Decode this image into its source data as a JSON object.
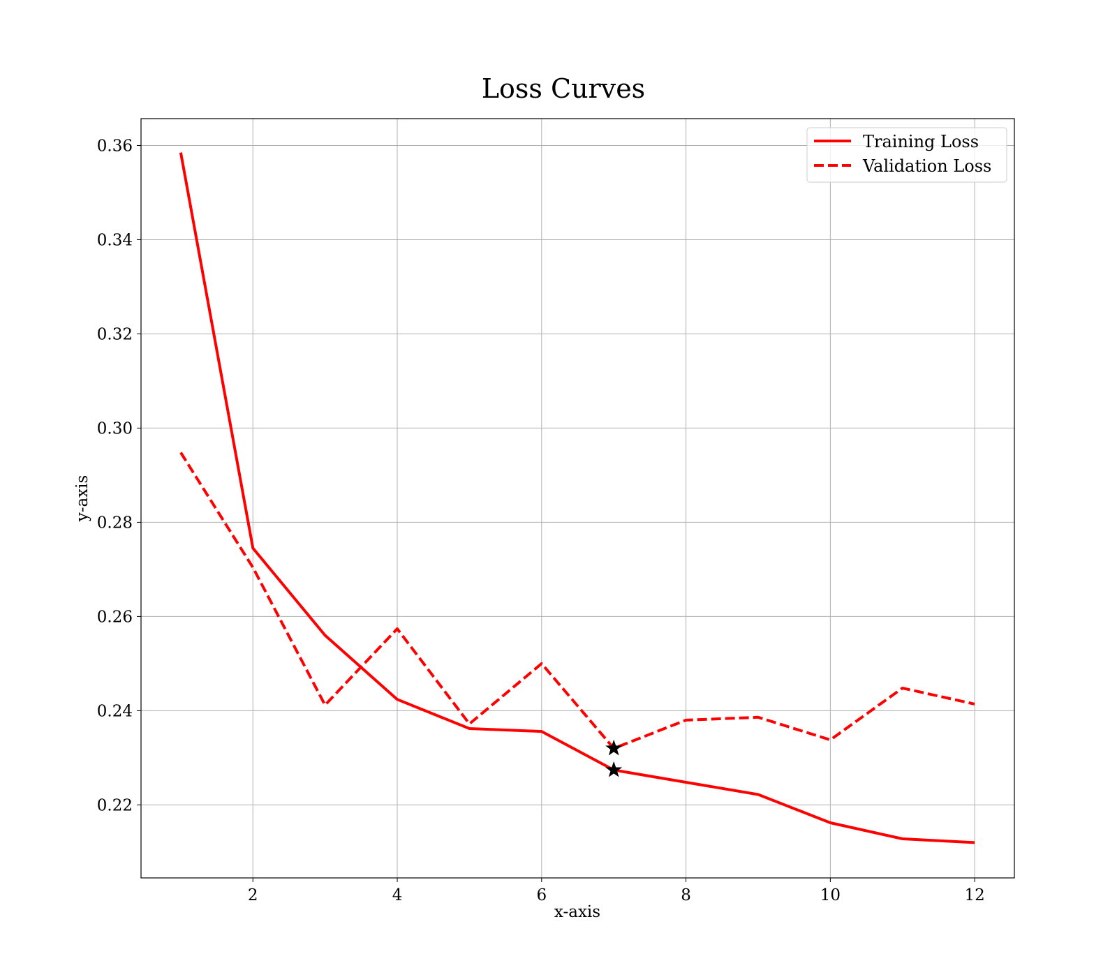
{
  "chart_data": {
    "type": "line",
    "title": "Loss Curves",
    "xlabel": "x-axis",
    "ylabel": "y-axis",
    "xlim": [
      0.45,
      12.55
    ],
    "ylim": [
      0.2045,
      0.3657
    ],
    "xticks": [
      2,
      4,
      6,
      8,
      10,
      12
    ],
    "yticks": [
      0.22,
      0.24,
      0.26,
      0.28,
      0.3,
      0.32,
      0.34,
      0.36
    ],
    "xtick_labels": [
      "2",
      "4",
      "6",
      "8",
      "10",
      "12"
    ],
    "ytick_labels": [
      "0.22",
      "0.24",
      "0.26",
      "0.28",
      "0.30",
      "0.32",
      "0.34",
      "0.36"
    ],
    "grid": true,
    "legend_position": "top-right",
    "x": [
      1,
      2,
      3,
      4,
      5,
      6,
      7,
      8,
      9,
      10,
      11,
      12
    ],
    "series": [
      {
        "name": "Training Loss",
        "style": "solid",
        "color": "#ff0000",
        "values": [
          0.3585,
          0.2745,
          0.256,
          0.2424,
          0.2362,
          0.2356,
          0.2274,
          0.2248,
          0.2222,
          0.2162,
          0.2128,
          0.212
        ]
      },
      {
        "name": "Validation Loss",
        "style": "dashed",
        "color": "#ff0000",
        "values": [
          0.2948,
          0.2704,
          0.2412,
          0.2574,
          0.2372,
          0.25,
          0.232,
          0.238,
          0.2386,
          0.2338,
          0.2448,
          0.2414
        ]
      }
    ],
    "markers": [
      {
        "x": 7,
        "y": 0.2274,
        "symbol": "star",
        "color": "#000000"
      },
      {
        "x": 7,
        "y": 0.232,
        "symbol": "star",
        "color": "#000000"
      }
    ]
  }
}
